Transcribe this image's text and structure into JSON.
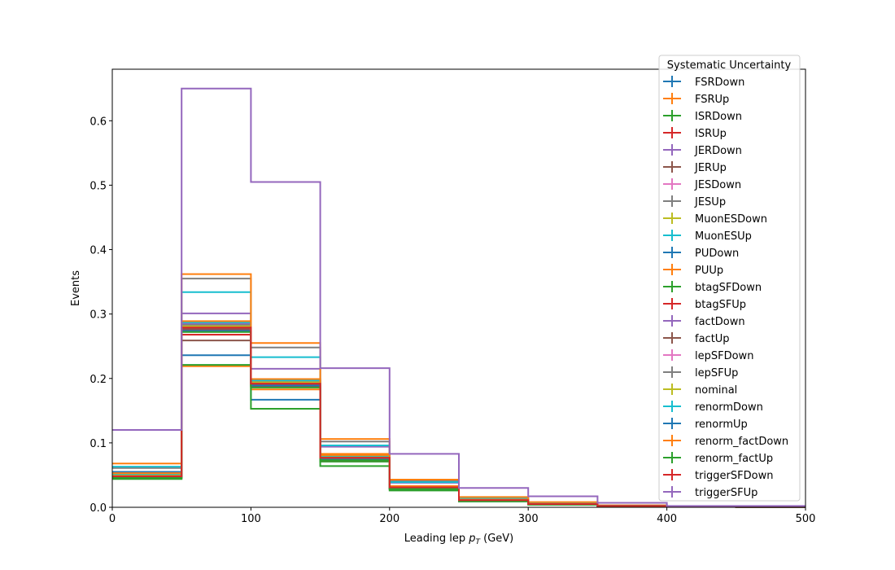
{
  "chart_data": {
    "type": "line",
    "xlabel": "Leading lep",
    "xlabel_unit": "(GeV)",
    "ylabel": "Events",
    "xlim": [
      0,
      500
    ],
    "ylim": [
      0,
      0.68
    ],
    "x_ticks": [
      "0",
      "100",
      "200",
      "300",
      "400",
      "500"
    ],
    "y_ticks": [
      "0.0",
      "0.1",
      "0.2",
      "0.3",
      "0.4",
      "0.5",
      "0.6"
    ],
    "bin_edges": [
      0,
      50,
      100,
      150,
      200,
      250,
      300,
      350,
      400,
      450,
      500
    ],
    "legend_title": "Systematic Uncertainty",
    "legend_position": "upper right",
    "series": [
      {
        "name": "FSRDown",
        "color": "#1f77b4",
        "values": [
          0.055,
          0.236,
          0.167,
          0.078,
          0.031,
          0.011,
          0.006,
          0.002,
          0.001,
          0.0005
        ]
      },
      {
        "name": "FSRUp",
        "color": "#ff7f0e",
        "values": [
          0.047,
          0.219,
          0.183,
          0.083,
          0.032,
          0.012,
          0.006,
          0.002,
          0.001,
          0.0005
        ]
      },
      {
        "name": "ISRDown",
        "color": "#2ca02c",
        "values": [
          0.045,
          0.284,
          0.195,
          0.071,
          0.028,
          0.01,
          0.005,
          0.002,
          0.001,
          0.0005
        ]
      },
      {
        "name": "ISRUp",
        "color": "#d62728",
        "values": [
          0.046,
          0.276,
          0.199,
          0.073,
          0.029,
          0.01,
          0.005,
          0.002,
          0.001,
          0.0005
        ]
      },
      {
        "name": "JERDown",
        "color": "#9467bd",
        "values": [
          0.053,
          0.301,
          0.215,
          0.094,
          0.038,
          0.014,
          0.007,
          0.002,
          0.001,
          0.0005
        ]
      },
      {
        "name": "JERUp",
        "color": "#8c564b",
        "values": [
          0.052,
          0.259,
          0.188,
          0.073,
          0.029,
          0.01,
          0.005,
          0.002,
          0.001,
          0.0005
        ]
      },
      {
        "name": "JESDown",
        "color": "#e377c2",
        "values": [
          0.051,
          0.278,
          0.19,
          0.076,
          0.031,
          0.011,
          0.005,
          0.002,
          0.001,
          0.0005
        ]
      },
      {
        "name": "JESUp",
        "color": "#7f7f7f",
        "values": [
          0.061,
          0.355,
          0.248,
          0.102,
          0.041,
          0.015,
          0.007,
          0.003,
          0.001,
          0.0005
        ]
      },
      {
        "name": "MuonESDown",
        "color": "#bcbd22",
        "values": [
          0.048,
          0.283,
          0.196,
          0.08,
          0.032,
          0.011,
          0.005,
          0.002,
          0.001,
          0.0005
        ]
      },
      {
        "name": "MuonESUp",
        "color": "#17becf",
        "values": [
          0.063,
          0.334,
          0.233,
          0.096,
          0.039,
          0.014,
          0.007,
          0.002,
          0.001,
          0.0005
        ]
      },
      {
        "name": "PUDown",
        "color": "#1f77b4",
        "values": [
          0.05,
          0.28,
          0.196,
          0.079,
          0.032,
          0.011,
          0.005,
          0.002,
          0.001,
          0.0005
        ]
      },
      {
        "name": "PUUp",
        "color": "#ff7f0e",
        "values": [
          0.068,
          0.362,
          0.255,
          0.106,
          0.043,
          0.016,
          0.008,
          0.003,
          0.001,
          0.0005
        ]
      },
      {
        "name": "btagSFDown",
        "color": "#2ca02c",
        "values": [
          0.044,
          0.221,
          0.153,
          0.064,
          0.026,
          0.009,
          0.004,
          0.002,
          0.001,
          0.0004
        ]
      },
      {
        "name": "btagSFUp",
        "color": "#d62728",
        "values": [
          0.049,
          0.268,
          0.188,
          0.076,
          0.031,
          0.011,
          0.005,
          0.002,
          0.001,
          0.0005
        ]
      },
      {
        "name": "factDown",
        "color": "#9467bd",
        "values": [
          0.051,
          0.285,
          0.194,
          0.078,
          0.032,
          0.011,
          0.005,
          0.002,
          0.001,
          0.0005
        ]
      },
      {
        "name": "factUp",
        "color": "#8c564b",
        "values": [
          0.048,
          0.277,
          0.19,
          0.075,
          0.03,
          0.011,
          0.005,
          0.002,
          0.001,
          0.0005
        ]
      },
      {
        "name": "lepSFDown",
        "color": "#e377c2",
        "values": [
          0.049,
          0.28,
          0.193,
          0.077,
          0.031,
          0.011,
          0.005,
          0.002,
          0.001,
          0.0005
        ]
      },
      {
        "name": "lepSFUp",
        "color": "#7f7f7f",
        "values": [
          0.05,
          0.283,
          0.196,
          0.079,
          0.032,
          0.011,
          0.005,
          0.002,
          0.001,
          0.0005
        ]
      },
      {
        "name": "nominal",
        "color": "#bcbd22",
        "values": [
          0.049,
          0.281,
          0.194,
          0.078,
          0.031,
          0.011,
          0.005,
          0.002,
          0.001,
          0.0005
        ]
      },
      {
        "name": "renormDown",
        "color": "#17becf",
        "values": [
          0.052,
          0.287,
          0.197,
          0.08,
          0.032,
          0.011,
          0.005,
          0.002,
          0.001,
          0.0005
        ]
      },
      {
        "name": "renormUp",
        "color": "#1f77b4",
        "values": [
          0.047,
          0.274,
          0.189,
          0.074,
          0.03,
          0.01,
          0.005,
          0.002,
          0.001,
          0.0005
        ]
      },
      {
        "name": "renorm_factDown",
        "color": "#ff7f0e",
        "values": [
          0.053,
          0.289,
          0.199,
          0.081,
          0.033,
          0.012,
          0.005,
          0.002,
          0.001,
          0.0005
        ]
      },
      {
        "name": "renorm_factUp",
        "color": "#2ca02c",
        "values": [
          0.046,
          0.272,
          0.186,
          0.073,
          0.029,
          0.01,
          0.005,
          0.002,
          0.001,
          0.0005
        ]
      },
      {
        "name": "triggerSFDown",
        "color": "#d62728",
        "values": [
          0.048,
          0.279,
          0.192,
          0.077,
          0.031,
          0.011,
          0.005,
          0.002,
          0.001,
          0.0005
        ]
      },
      {
        "name": "triggerSFUp",
        "color": "#9467bd",
        "values": [
          0.12,
          0.65,
          0.505,
          0.216,
          0.083,
          0.03,
          0.017,
          0.007,
          0.002,
          0.002
        ]
      }
    ]
  }
}
